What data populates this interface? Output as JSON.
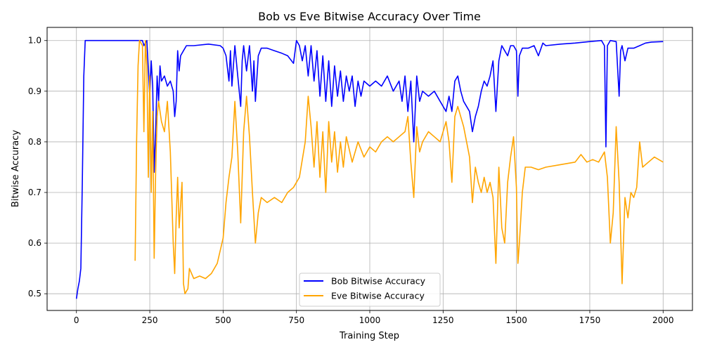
{
  "chart_data": {
    "type": "line",
    "title": "Bob vs Eve Bitwise Accuracy Over Time",
    "xlabel": "Training Step",
    "ylabel": "Bitwise Accuracy",
    "xlim": [
      -100,
      2100
    ],
    "ylim": [
      0.467,
      1.026
    ],
    "xticks": [
      0,
      250,
      500,
      750,
      1000,
      1250,
      1500,
      1750,
      2000
    ],
    "yticks": [
      0.5,
      0.6,
      0.7,
      0.8,
      0.9,
      1.0
    ],
    "grid": true,
    "legend_position": "bottom-center",
    "series": [
      {
        "name": "Bob Bitwise Accuracy",
        "color": "#0000ff",
        "points": [
          [
            0,
            0.49
          ],
          [
            5,
            0.51
          ],
          [
            10,
            0.525
          ],
          [
            15,
            0.55
          ],
          [
            20,
            0.72
          ],
          [
            25,
            0.93
          ],
          [
            30,
            1.0
          ],
          [
            100,
            1.0
          ],
          [
            200,
            1.0
          ],
          [
            225,
            1.0
          ],
          [
            230,
            0.99
          ],
          [
            240,
            1.0
          ],
          [
            250,
            0.89
          ],
          [
            255,
            0.96
          ],
          [
            260,
            0.91
          ],
          [
            265,
            0.74
          ],
          [
            270,
            0.82
          ],
          [
            275,
            0.93
          ],
          [
            280,
            0.88
          ],
          [
            285,
            0.95
          ],
          [
            290,
            0.92
          ],
          [
            300,
            0.93
          ],
          [
            310,
            0.91
          ],
          [
            320,
            0.92
          ],
          [
            330,
            0.9
          ],
          [
            335,
            0.85
          ],
          [
            340,
            0.88
          ],
          [
            345,
            0.98
          ],
          [
            350,
            0.94
          ],
          [
            355,
            0.97
          ],
          [
            365,
            0.98
          ],
          [
            375,
            0.99
          ],
          [
            400,
            0.99
          ],
          [
            450,
            0.993
          ],
          [
            490,
            0.99
          ],
          [
            500,
            0.985
          ],
          [
            510,
            0.97
          ],
          [
            520,
            0.92
          ],
          [
            525,
            0.98
          ],
          [
            530,
            0.91
          ],
          [
            540,
            0.99
          ],
          [
            550,
            0.93
          ],
          [
            560,
            0.87
          ],
          [
            565,
            0.96
          ],
          [
            570,
            0.99
          ],
          [
            580,
            0.94
          ],
          [
            590,
            0.99
          ],
          [
            600,
            0.9
          ],
          [
            605,
            0.96
          ],
          [
            610,
            0.88
          ],
          [
            620,
            0.97
          ],
          [
            630,
            0.985
          ],
          [
            650,
            0.985
          ],
          [
            675,
            0.98
          ],
          [
            700,
            0.975
          ],
          [
            720,
            0.97
          ],
          [
            740,
            0.955
          ],
          [
            750,
            1.0
          ],
          [
            760,
            0.99
          ],
          [
            770,
            0.96
          ],
          [
            780,
            0.99
          ],
          [
            790,
            0.93
          ],
          [
            800,
            0.99
          ],
          [
            810,
            0.92
          ],
          [
            820,
            0.98
          ],
          [
            830,
            0.89
          ],
          [
            840,
            0.97
          ],
          [
            850,
            0.88
          ],
          [
            860,
            0.96
          ],
          [
            870,
            0.87
          ],
          [
            880,
            0.95
          ],
          [
            890,
            0.89
          ],
          [
            900,
            0.94
          ],
          [
            910,
            0.88
          ],
          [
            920,
            0.93
          ],
          [
            930,
            0.9
          ],
          [
            940,
            0.93
          ],
          [
            950,
            0.87
          ],
          [
            960,
            0.92
          ],
          [
            970,
            0.89
          ],
          [
            980,
            0.92
          ],
          [
            1000,
            0.91
          ],
          [
            1020,
            0.92
          ],
          [
            1040,
            0.91
          ],
          [
            1060,
            0.93
          ],
          [
            1080,
            0.9
          ],
          [
            1100,
            0.92
          ],
          [
            1110,
            0.88
          ],
          [
            1120,
            0.93
          ],
          [
            1130,
            0.86
          ],
          [
            1140,
            0.92
          ],
          [
            1150,
            0.8
          ],
          [
            1160,
            0.93
          ],
          [
            1170,
            0.88
          ],
          [
            1180,
            0.9
          ],
          [
            1200,
            0.89
          ],
          [
            1220,
            0.9
          ],
          [
            1240,
            0.88
          ],
          [
            1260,
            0.86
          ],
          [
            1270,
            0.89
          ],
          [
            1280,
            0.86
          ],
          [
            1290,
            0.92
          ],
          [
            1300,
            0.93
          ],
          [
            1310,
            0.9
          ],
          [
            1320,
            0.88
          ],
          [
            1340,
            0.86
          ],
          [
            1350,
            0.82
          ],
          [
            1360,
            0.85
          ],
          [
            1370,
            0.87
          ],
          [
            1380,
            0.9
          ],
          [
            1390,
            0.92
          ],
          [
            1400,
            0.91
          ],
          [
            1410,
            0.93
          ],
          [
            1420,
            0.96
          ],
          [
            1430,
            0.86
          ],
          [
            1440,
            0.96
          ],
          [
            1450,
            0.99
          ],
          [
            1460,
            0.98
          ],
          [
            1470,
            0.97
          ],
          [
            1480,
            0.99
          ],
          [
            1490,
            0.99
          ],
          [
            1500,
            0.98
          ],
          [
            1505,
            0.89
          ],
          [
            1510,
            0.97
          ],
          [
            1520,
            0.985
          ],
          [
            1540,
            0.985
          ],
          [
            1560,
            0.99
          ],
          [
            1575,
            0.97
          ],
          [
            1590,
            0.995
          ],
          [
            1600,
            0.99
          ],
          [
            1650,
            0.993
          ],
          [
            1700,
            0.995
          ],
          [
            1750,
            0.998
          ],
          [
            1790,
            1.0
          ],
          [
            1800,
            0.99
          ],
          [
            1805,
            0.79
          ],
          [
            1810,
            0.99
          ],
          [
            1820,
            1.0
          ],
          [
            1840,
            0.998
          ],
          [
            1850,
            0.89
          ],
          [
            1855,
            0.98
          ],
          [
            1860,
            0.99
          ],
          [
            1870,
            0.96
          ],
          [
            1880,
            0.985
          ],
          [
            1900,
            0.985
          ],
          [
            1920,
            0.99
          ],
          [
            1940,
            0.995
          ],
          [
            1960,
            0.997
          ],
          [
            2000,
            0.998
          ]
        ]
      },
      {
        "name": "Eve Bitwise Accuracy",
        "color": "#ffa500",
        "points": [
          [
            200,
            0.565
          ],
          [
            205,
            0.8
          ],
          [
            210,
            0.95
          ],
          [
            215,
            1.0
          ],
          [
            225,
            0.99
          ],
          [
            230,
            0.82
          ],
          [
            235,
            1.0
          ],
          [
            240,
            0.95
          ],
          [
            245,
            0.73
          ],
          [
            250,
            0.93
          ],
          [
            255,
            0.7
          ],
          [
            260,
            0.86
          ],
          [
            265,
            0.57
          ],
          [
            270,
            0.74
          ],
          [
            275,
            0.85
          ],
          [
            280,
            0.88
          ],
          [
            290,
            0.84
          ],
          [
            300,
            0.82
          ],
          [
            310,
            0.88
          ],
          [
            320,
            0.78
          ],
          [
            330,
            0.6
          ],
          [
            335,
            0.54
          ],
          [
            340,
            0.65
          ],
          [
            345,
            0.73
          ],
          [
            350,
            0.63
          ],
          [
            360,
            0.72
          ],
          [
            365,
            0.52
          ],
          [
            370,
            0.5
          ],
          [
            380,
            0.51
          ],
          [
            385,
            0.55
          ],
          [
            400,
            0.53
          ],
          [
            420,
            0.535
          ],
          [
            440,
            0.53
          ],
          [
            460,
            0.54
          ],
          [
            480,
            0.56
          ],
          [
            500,
            0.61
          ],
          [
            510,
            0.68
          ],
          [
            520,
            0.73
          ],
          [
            530,
            0.77
          ],
          [
            540,
            0.88
          ],
          [
            550,
            0.78
          ],
          [
            560,
            0.64
          ],
          [
            570,
            0.82
          ],
          [
            580,
            0.89
          ],
          [
            590,
            0.81
          ],
          [
            600,
            0.7
          ],
          [
            610,
            0.6
          ],
          [
            620,
            0.66
          ],
          [
            630,
            0.69
          ],
          [
            650,
            0.68
          ],
          [
            675,
            0.69
          ],
          [
            700,
            0.68
          ],
          [
            720,
            0.7
          ],
          [
            740,
            0.71
          ],
          [
            760,
            0.73
          ],
          [
            780,
            0.8
          ],
          [
            790,
            0.89
          ],
          [
            800,
            0.83
          ],
          [
            810,
            0.75
          ],
          [
            820,
            0.84
          ],
          [
            830,
            0.73
          ],
          [
            840,
            0.82
          ],
          [
            850,
            0.7
          ],
          [
            860,
            0.84
          ],
          [
            870,
            0.76
          ],
          [
            880,
            0.82
          ],
          [
            890,
            0.74
          ],
          [
            900,
            0.8
          ],
          [
            910,
            0.75
          ],
          [
            920,
            0.81
          ],
          [
            940,
            0.76
          ],
          [
            960,
            0.8
          ],
          [
            980,
            0.77
          ],
          [
            1000,
            0.79
          ],
          [
            1020,
            0.78
          ],
          [
            1040,
            0.8
          ],
          [
            1060,
            0.81
          ],
          [
            1080,
            0.8
          ],
          [
            1100,
            0.81
          ],
          [
            1120,
            0.82
          ],
          [
            1130,
            0.85
          ],
          [
            1140,
            0.76
          ],
          [
            1150,
            0.69
          ],
          [
            1160,
            0.83
          ],
          [
            1170,
            0.78
          ],
          [
            1180,
            0.8
          ],
          [
            1200,
            0.82
          ],
          [
            1220,
            0.81
          ],
          [
            1240,
            0.8
          ],
          [
            1260,
            0.84
          ],
          [
            1270,
            0.8
          ],
          [
            1280,
            0.72
          ],
          [
            1290,
            0.85
          ],
          [
            1300,
            0.87
          ],
          [
            1320,
            0.83
          ],
          [
            1340,
            0.77
          ],
          [
            1350,
            0.68
          ],
          [
            1360,
            0.75
          ],
          [
            1370,
            0.72
          ],
          [
            1380,
            0.7
          ],
          [
            1390,
            0.73
          ],
          [
            1400,
            0.7
          ],
          [
            1410,
            0.72
          ],
          [
            1420,
            0.69
          ],
          [
            1430,
            0.56
          ],
          [
            1440,
            0.75
          ],
          [
            1450,
            0.63
          ],
          [
            1460,
            0.6
          ],
          [
            1470,
            0.72
          ],
          [
            1480,
            0.77
          ],
          [
            1490,
            0.81
          ],
          [
            1500,
            0.71
          ],
          [
            1505,
            0.56
          ],
          [
            1510,
            0.6
          ],
          [
            1520,
            0.7
          ],
          [
            1530,
            0.75
          ],
          [
            1550,
            0.75
          ],
          [
            1575,
            0.745
          ],
          [
            1600,
            0.75
          ],
          [
            1650,
            0.755
          ],
          [
            1700,
            0.76
          ],
          [
            1720,
            0.775
          ],
          [
            1740,
            0.76
          ],
          [
            1760,
            0.765
          ],
          [
            1780,
            0.76
          ],
          [
            1800,
            0.78
          ],
          [
            1810,
            0.73
          ],
          [
            1820,
            0.6
          ],
          [
            1830,
            0.66
          ],
          [
            1840,
            0.83
          ],
          [
            1850,
            0.72
          ],
          [
            1860,
            0.52
          ],
          [
            1870,
            0.69
          ],
          [
            1880,
            0.65
          ],
          [
            1890,
            0.7
          ],
          [
            1900,
            0.69
          ],
          [
            1910,
            0.71
          ],
          [
            1920,
            0.8
          ],
          [
            1930,
            0.75
          ],
          [
            1950,
            0.76
          ],
          [
            1970,
            0.77
          ],
          [
            2000,
            0.76
          ]
        ]
      }
    ]
  }
}
